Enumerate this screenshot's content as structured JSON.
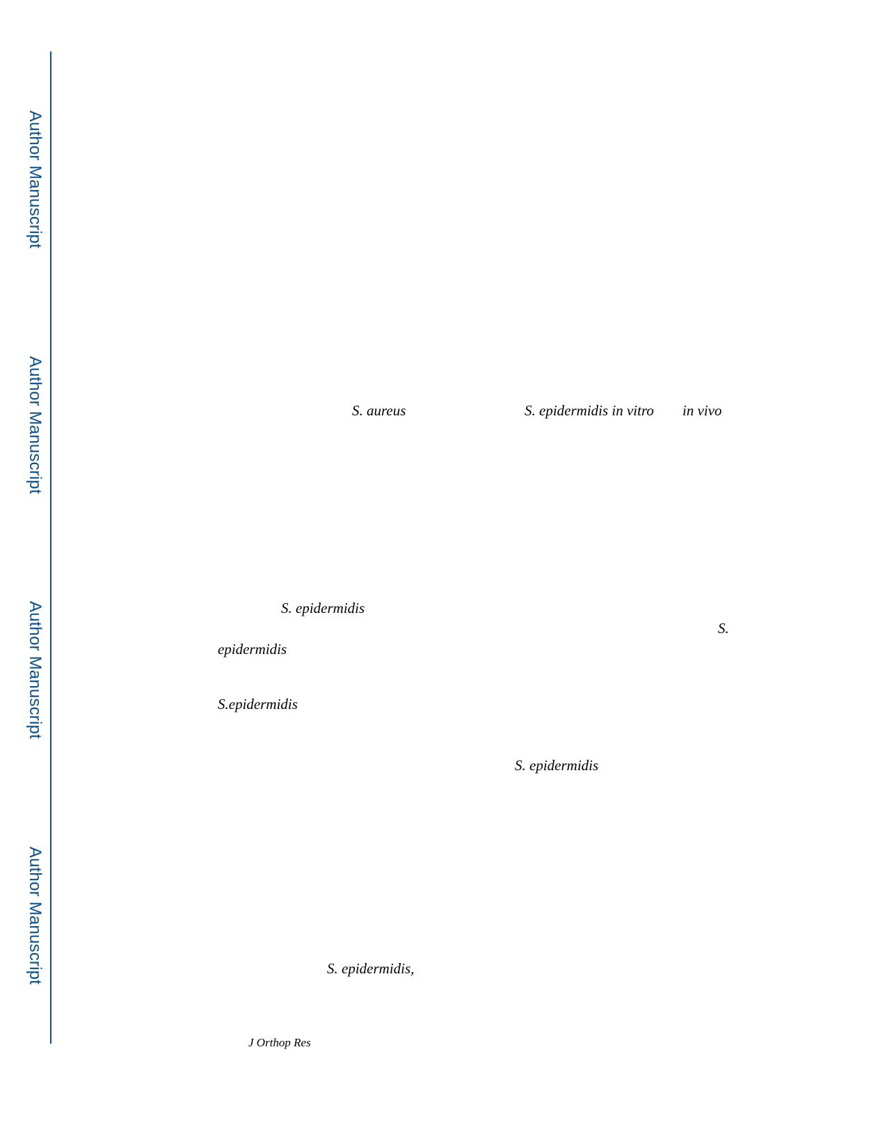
{
  "sidebar": {
    "banners": [
      "Author Manuscript",
      "Author Manuscript",
      "Author Manuscript",
      "Author Manuscript"
    ],
    "accent_color": "#0b4f8a"
  },
  "body_fragments": {
    "s_aureus": "S. aureus",
    "s_epidermidis_in_vitro": "S. epidermidis in vitro",
    "in_vivo": "in vivo",
    "s_epidermidis_1": "S. epidermidis",
    "s_abbrev": "S.",
    "epidermidis": "epidermidis",
    "s_epidermidis_nospace": "S.epidermidis",
    "s_epidermidis_2": "S. epidermidis",
    "s_epidermidis_comma": "S. epidermidis,"
  },
  "footer": {
    "journal": "J Orthop Res"
  }
}
